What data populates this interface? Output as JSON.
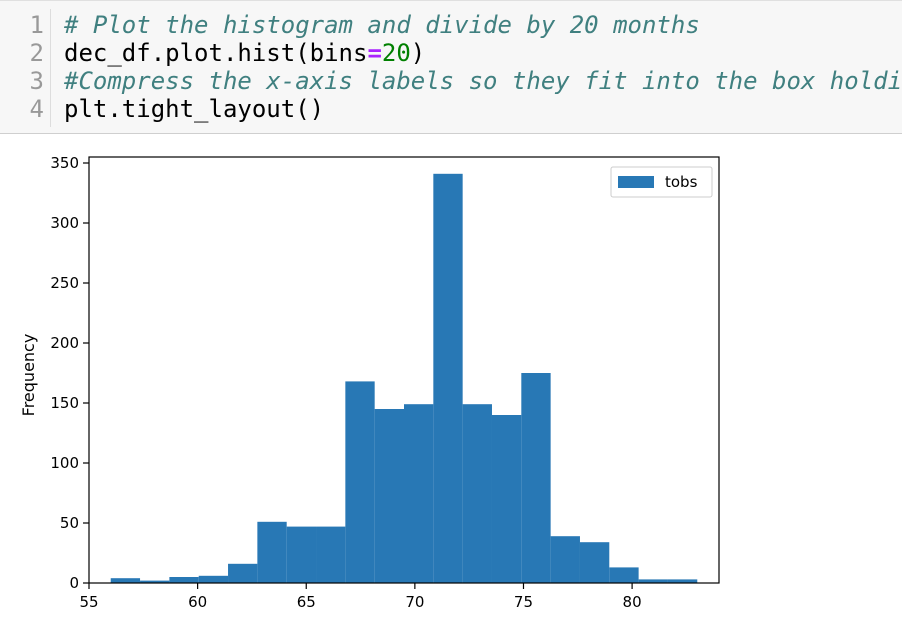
{
  "code_lines": [
    {
      "num": "1",
      "segments": [
        {
          "t": "# Plot the histogram and divide by 20 months",
          "c": "comment"
        }
      ]
    },
    {
      "num": "2",
      "segments": [
        {
          "t": "dec_df.plot.hist(bins",
          "c": ""
        },
        {
          "t": "=",
          "c": "op"
        },
        {
          "t": "20",
          "c": "num"
        },
        {
          "t": ")",
          "c": ""
        }
      ]
    },
    {
      "num": "3",
      "segments": [
        {
          "t": "#Compress the x-axis labels so they fit into the box holdi",
          "c": "comment"
        }
      ]
    },
    {
      "num": "4",
      "segments": [
        {
          "t": "plt.tight_layout()",
          "c": ""
        }
      ]
    }
  ],
  "chart_data": {
    "type": "bar",
    "ylabel": "Frequency",
    "xlabel": "",
    "xlim": [
      55,
      84
    ],
    "ylim": [
      0,
      355
    ],
    "xticks": [
      55,
      60,
      65,
      70,
      75,
      80
    ],
    "yticks": [
      0,
      50,
      100,
      150,
      200,
      250,
      300,
      350
    ],
    "bin_edges": [
      56,
      57.35,
      58.7,
      60.05,
      61.4,
      62.75,
      64.1,
      65.45,
      66.8,
      68.15,
      69.5,
      70.85,
      72.2,
      73.55,
      74.9,
      76.25,
      77.6,
      78.95,
      80.3,
      81.65,
      83
    ],
    "series": [
      {
        "name": "tobs",
        "values": [
          4,
          2,
          5,
          6,
          16,
          51,
          47,
          47,
          168,
          145,
          149,
          341,
          149,
          140,
          175,
          39,
          34,
          13,
          3,
          3
        ]
      }
    ],
    "bar_color": "#2878b5",
    "legend": "top-right",
    "grid": false
  }
}
